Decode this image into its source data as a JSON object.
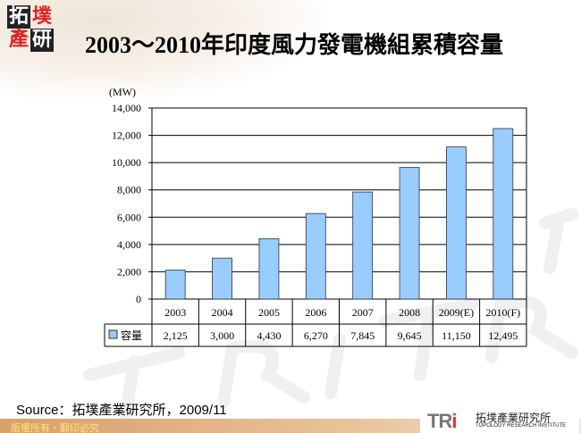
{
  "logo": {
    "chars": [
      "拓",
      "墣",
      "產",
      "研"
    ]
  },
  "title": "2003～2010年印度風力發電機組累積容量",
  "chart_data": {
    "type": "bar",
    "title": "2003～2010年印度風力發電機組累積容量",
    "unit": "(MW)",
    "categories": [
      "2003",
      "2004",
      "2005",
      "2006",
      "2007",
      "2008",
      "2009(E)",
      "2010(F)"
    ],
    "series": [
      {
        "name": "容量",
        "values": [
          2125,
          3000,
          4430,
          6270,
          7845,
          9645,
          11150,
          12495
        ],
        "labels": [
          "2,125",
          "3,000",
          "4,430",
          "6,270",
          "7,845",
          "9,645",
          "11,150",
          "12,495"
        ],
        "color": "#99CCFF"
      }
    ],
    "ylim": [
      0,
      14000
    ],
    "yticks": [
      "0",
      "2,000",
      "4,000",
      "6,000",
      "8,000",
      "10,000",
      "12,000",
      "14,000"
    ],
    "grid": true,
    "legend": "data-table"
  },
  "source": "Source：拓墣產業研究所，2009/11",
  "footer": {
    "copyright": "版權所有・翻印必究",
    "org_short": "TRi",
    "org_name": "拓墣產業研究所",
    "org_en": "TOPOLOGY RESEARCH INSTITUTE"
  }
}
